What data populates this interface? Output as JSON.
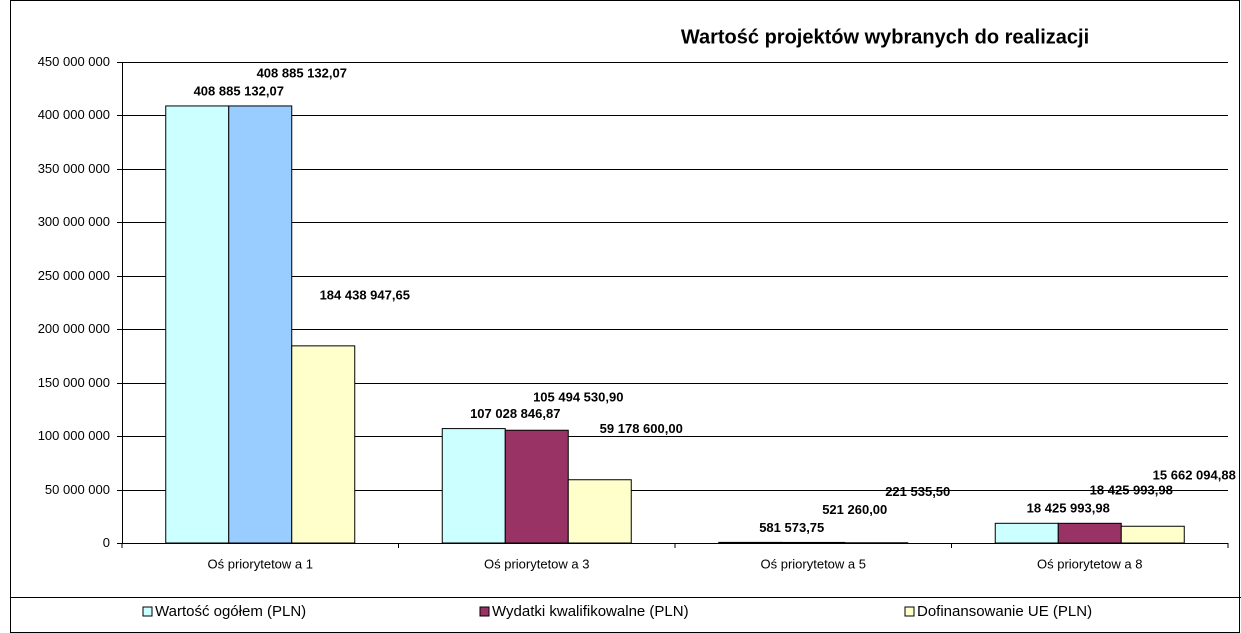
{
  "chart_data": {
    "type": "bar",
    "title": "Wartość projektów wybranych do realizacji",
    "categories": [
      "Oś priorytetow a 1",
      "Oś priorytetow a 3",
      "Oś priorytetow a 5",
      "Oś priorytetow a 8"
    ],
    "series": [
      {
        "name": "Wartość ogółem (PLN)",
        "color": "#ccffff",
        "values": [
          408885132.07,
          107028846.87,
          581573.75,
          18425993.98
        ],
        "value_labels": [
          "408 885 132,07",
          "107 028 846,87",
          "581 573,75",
          "18 425 993,98"
        ]
      },
      {
        "name": "Wydatki kwalifikowalne (PLN)",
        "color": "#993366",
        "colors": [
          "#99ccff",
          "#993366",
          "#993366",
          "#993366"
        ],
        "values": [
          408885132.07,
          105494530.9,
          521260.0,
          18425993.98
        ],
        "value_labels": [
          "408 885 132,07",
          "105 494 530,90",
          "521 260,00",
          "18 425 993,98"
        ]
      },
      {
        "name": "Dofinansowanie UE (PLN)",
        "color": "#ffffcc",
        "values": [
          184438947.65,
          59178600.0,
          221535.5,
          15662094.88
        ],
        "value_labels": [
          "184 438 947,65",
          "59 178 600,00",
          "221 535,50",
          "15 662 094,88"
        ]
      }
    ],
    "ylim": [
      0,
      450000000
    ],
    "yticks": [
      0,
      {
        "value": 50000000,
        "label": "50 000 000"
      },
      {
        "value": 100000000,
        "label": "100 000 000"
      },
      {
        "value": 150000000,
        "label": "150 000 000"
      },
      {
        "value": 200000000,
        "label": "200 000 000"
      },
      {
        "value": 250000000,
        "label": "250 000 000"
      },
      {
        "value": 300000000,
        "label": "300 000 000"
      },
      {
        "value": 350000000,
        "label": "350 000 000"
      },
      {
        "value": 400000000,
        "label": "400 000 000"
      },
      {
        "value": 450000000,
        "label": "450 000 000"
      }
    ],
    "grid": true,
    "legend": "bottom"
  }
}
